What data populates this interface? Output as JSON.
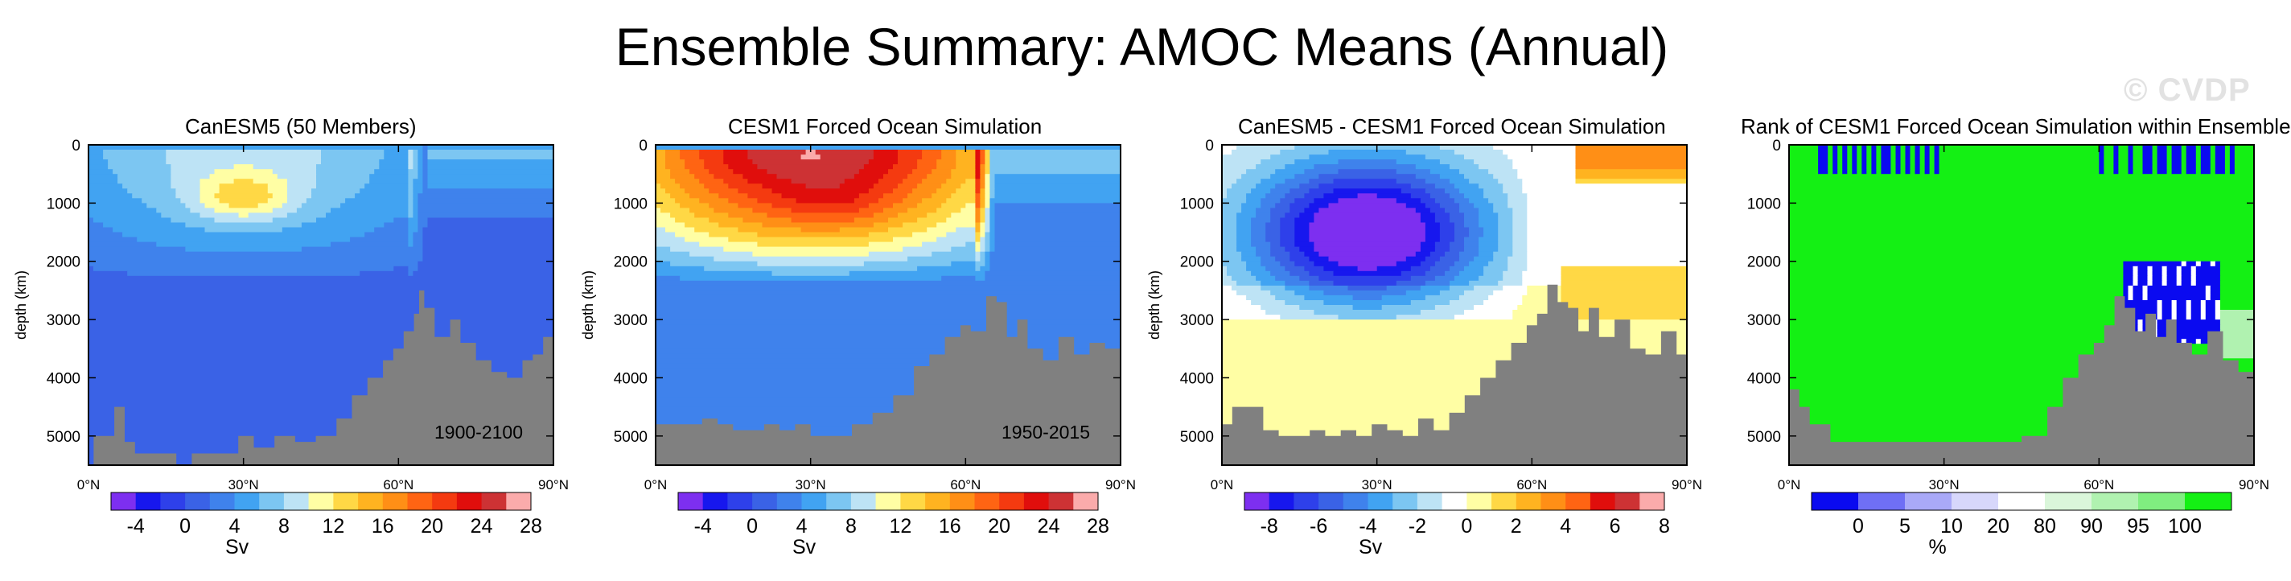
{
  "figure": {
    "title": "Ensemble Summary: AMOC Means (Annual)",
    "watermark": "© CVDP"
  },
  "colors": {
    "land": "#808080",
    "amoc_levels": [
      "#7d2ff0",
      "#1717ee",
      "#2e40ea",
      "#3a62e6",
      "#3f82ec",
      "#41a3f2",
      "#7cc6f2",
      "#bde3f5",
      "#fffea4",
      "#ffd845",
      "#ffb320",
      "#ff8f16",
      "#ff6413",
      "#f43a10",
      "#e00e0c",
      "#cd3234",
      "#fbabab"
    ],
    "diff_levels": [
      "#7d2ff0",
      "#1717ee",
      "#2e40ea",
      "#3a62e6",
      "#3f82ec",
      "#41a3f2",
      "#7cc6f2",
      "#bde3f5",
      "#ffffff",
      "#fffea4",
      "#ffd845",
      "#ffb320",
      "#ff8f16",
      "#ff6413",
      "#e00e0c",
      "#cd3234",
      "#fbabab"
    ],
    "rank_levels": [
      "#0a0af0",
      "#6f6ff5",
      "#a9a9f8",
      "#d7d7fb",
      "#ffffff",
      "#daf6da",
      "#b0f2b0",
      "#80ee80",
      "#14f014"
    ]
  },
  "chart_data": [
    {
      "type": "heatmap",
      "title": "CanESM5 (50 Members)",
      "period": "1900-2100",
      "ylabel": "depth (km)",
      "x_ticks": [
        "0°N",
        "30°N",
        "60°N",
        "90°N"
      ],
      "xlim": [
        0,
        90
      ],
      "y_ticks": [
        "0",
        "1000",
        "2000",
        "3000",
        "4000",
        "5000"
      ],
      "ylim": [
        0,
        5500
      ],
      "y_reversed": true,
      "colorbar": {
        "unit": "Sv",
        "labels": [
          "-4",
          "0",
          "4",
          "8",
          "12",
          "16",
          "20",
          "24",
          "28"
        ]
      },
      "field": {
        "core_lat": 30,
        "core_depth": 900,
        "max": 14,
        "shallow_gradient": 8,
        "deep_value": -1
      },
      "bathymetry": {
        "lat": [
          0,
          1,
          3,
          5,
          7,
          9,
          11,
          14,
          17,
          20,
          23,
          26,
          29,
          32,
          36,
          40,
          44,
          48,
          51,
          54,
          57,
          59,
          61,
          63,
          64,
          65,
          67,
          70,
          72,
          75,
          78,
          81,
          84,
          86,
          88,
          90
        ],
        "depth": [
          5500,
          5000,
          5000,
          4500,
          5100,
          5300,
          5300,
          5300,
          5500,
          5300,
          5300,
          5300,
          5000,
          5200,
          5000,
          5100,
          5000,
          4700,
          4300,
          4000,
          3700,
          3500,
          3200,
          2900,
          2500,
          2800,
          3300,
          3000,
          3400,
          3700,
          3900,
          4000,
          3700,
          3600,
          3300,
          3300
        ]
      }
    },
    {
      "type": "heatmap",
      "title": "CESM1 Forced Ocean Simulation",
      "period": "1950-2015",
      "ylabel": "depth (km)",
      "x_ticks": [
        "0°N",
        "30°N",
        "60°N",
        "90°N"
      ],
      "xlim": [
        0,
        90
      ],
      "y_ticks": [
        "0",
        "1000",
        "2000",
        "3000",
        "4000",
        "5000"
      ],
      "ylim": [
        0,
        5500
      ],
      "y_reversed": true,
      "colorbar": {
        "unit": "Sv",
        "labels": [
          "-4",
          "0",
          "4",
          "8",
          "12",
          "16",
          "20",
          "24",
          "28"
        ]
      },
      "field": {
        "core_lat": 35,
        "core_depth": 1000,
        "max": 26,
        "shallow_gradient": 24,
        "deep_value": 0
      },
      "bathymetry": {
        "lat": [
          0,
          3,
          6,
          9,
          12,
          15,
          18,
          21,
          24,
          27,
          30,
          34,
          38,
          42,
          46,
          50,
          53,
          56,
          59,
          61,
          64,
          66,
          68,
          70,
          72,
          75,
          78,
          81,
          84,
          87,
          90
        ],
        "depth": [
          4800,
          4800,
          4800,
          4700,
          4800,
          4900,
          4900,
          4800,
          4900,
          4800,
          5000,
          5000,
          4800,
          4600,
          4300,
          3800,
          3600,
          3300,
          3100,
          3200,
          2600,
          2700,
          3300,
          3000,
          3500,
          3700,
          3300,
          3600,
          3400,
          3500,
          3500
        ]
      }
    },
    {
      "type": "heatmap",
      "title": "CanESM5 - CESM1 Forced Ocean Simulation",
      "ylabel": "depth (km)",
      "x_ticks": [
        "0°N",
        "30°N",
        "60°N",
        "90°N"
      ],
      "xlim": [
        0,
        90
      ],
      "y_ticks": [
        "0",
        "1000",
        "2000",
        "3000",
        "4000",
        "5000"
      ],
      "ylim": [
        0,
        5500
      ],
      "y_reversed": true,
      "colorbar": {
        "unit": "Sv",
        "labels": [
          "-8",
          "-6",
          "-4",
          "-2",
          "0",
          "2",
          "4",
          "6",
          "8"
        ]
      },
      "field": {
        "core_lat": 28,
        "core_depth": 1500,
        "min": -10,
        "deep_value": -1.2
      },
      "bathymetry": {
        "lat": [
          0,
          2,
          5,
          8,
          11,
          14,
          17,
          20,
          23,
          26,
          29,
          32,
          35,
          38,
          41,
          44,
          47,
          50,
          53,
          56,
          59,
          61,
          63,
          65,
          67,
          69,
          71,
          73,
          76,
          79,
          82,
          85,
          88,
          90
        ],
        "depth": [
          4800,
          4500,
          4500,
          4900,
          5000,
          5000,
          4900,
          5000,
          4900,
          5000,
          4800,
          4900,
          5000,
          4700,
          4900,
          4600,
          4300,
          4000,
          3700,
          3400,
          3100,
          2900,
          2400,
          2700,
          2800,
          3200,
          2800,
          3300,
          3000,
          3500,
          3600,
          3200,
          3600,
          3600
        ]
      }
    },
    {
      "type": "heatmap",
      "title": "Rank of CESM1 Forced Ocean Simulation within Ensemble",
      "x_ticks": [
        "0°N",
        "30°N",
        "60°N",
        "90°N"
      ],
      "xlim": [
        0,
        90
      ],
      "y_ticks": [
        "0",
        "1000",
        "2000",
        "3000",
        "4000",
        "5000"
      ],
      "ylim": [
        0,
        5500
      ],
      "y_reversed": true,
      "colorbar": {
        "unit": "%",
        "labels": [
          "0",
          "5",
          "10",
          "20",
          "80",
          "90",
          "95",
          "100"
        ]
      },
      "bathymetry": {
        "lat": [
          0,
          2,
          4,
          6,
          8,
          10,
          15,
          20,
          25,
          30,
          35,
          40,
          45,
          50,
          53,
          56,
          59,
          61,
          63,
          65,
          67,
          69,
          71,
          73,
          75,
          78,
          81,
          84,
          87,
          90
        ],
        "depth": [
          4200,
          4500,
          4800,
          4800,
          5100,
          5100,
          5100,
          5100,
          5100,
          5100,
          5100,
          5100,
          5000,
          4500,
          4000,
          3600,
          3400,
          3100,
          2600,
          2800,
          3200,
          2900,
          3300,
          3000,
          3400,
          3600,
          3200,
          3700,
          3900,
          3800
        ]
      }
    }
  ]
}
